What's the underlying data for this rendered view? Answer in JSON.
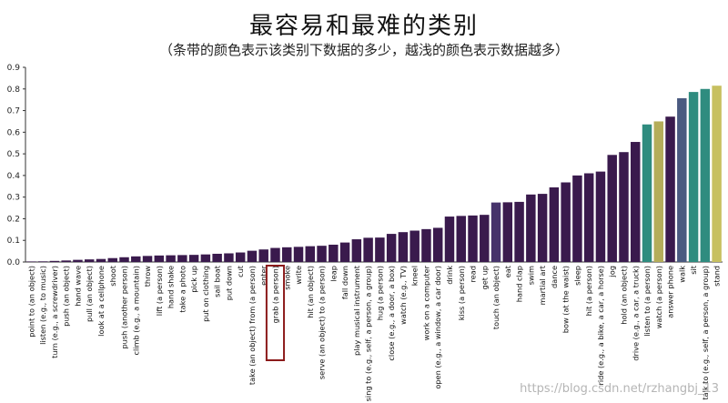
{
  "title": "最容易和最难的类别",
  "subtitle": "（条带的颜色表示该类别下数据的多少，越浅的颜色表示数据越多）",
  "watermark": "https://blog.csdn.net/rzhangbj_13",
  "highlight_category": "grab (a person)",
  "colors": {
    "dark": "#3a1a4d",
    "purple_blue": "#46336b",
    "teal": "#2f8c7f",
    "olive": "#b4ad5a",
    "slate": "#4a5a80",
    "highlight": "#8b1a1a",
    "axis": "#333333"
  },
  "chart_data": {
    "type": "bar",
    "title": "最容易和最难的类别",
    "subtitle": "（条带的颜色表示该类别下数据的多少，越浅的颜色表示数据越多）",
    "xlabel": "",
    "ylabel": "",
    "ylim": [
      0,
      0.9
    ],
    "yticks": [
      "0.0",
      "0.1",
      "0.2",
      "0.3",
      "0.4",
      "0.5",
      "0.6",
      "0.7",
      "0.8",
      "0.9"
    ],
    "grid": false,
    "categories": [
      "point to (an object)",
      "listen (e.g., to music)",
      "turn (e.g., a screwdriver)",
      "push (an object)",
      "hand wave",
      "pull (an object)",
      "look at a cellphone",
      "shoot",
      "push (another person)",
      "climb (e.g., a mountain)",
      "throw",
      "lift (a person)",
      "hand shake",
      "take a photo",
      "pick up",
      "put on clothing",
      "sail boat",
      "put down",
      "cut",
      "take (an object) from (a person)",
      "enter",
      "grab (a person)",
      "smoke",
      "write",
      "hit (an object)",
      "serve (an object) to (a person)",
      "leap",
      "fall down",
      "play musical instrument",
      "sing to (e.g., self, a person, a group)",
      "hug (a person)",
      "close (e.g., a door, a box)",
      "watch (e.g., TV)",
      "kneel",
      "work on a computer",
      "open (e.g., a window, a car door)",
      "drink",
      "kiss (a person)",
      "read",
      "get up",
      "touch (an object)",
      "eat",
      "hand clap",
      "swim",
      "martial art",
      "dance",
      "bow (at the waist)",
      "sleep",
      "hit (a person)",
      "ride (e.g., a bike, a car, a horse)",
      "jog",
      "hold (an object)",
      "drive (e.g., a car, a truck)",
      "listen to (a person)",
      "watch (a person)",
      "answer phone",
      "walk",
      "sit",
      "talk to (e.g., self, a person, a group)",
      "stand"
    ],
    "values": [
      0.002,
      0.003,
      0.005,
      0.007,
      0.01,
      0.012,
      0.014,
      0.018,
      0.022,
      0.026,
      0.028,
      0.03,
      0.031,
      0.032,
      0.033,
      0.035,
      0.038,
      0.04,
      0.044,
      0.052,
      0.058,
      0.065,
      0.068,
      0.07,
      0.073,
      0.075,
      0.08,
      0.09,
      0.105,
      0.112,
      0.113,
      0.13,
      0.138,
      0.145,
      0.152,
      0.158,
      0.21,
      0.213,
      0.215,
      0.218,
      0.275,
      0.276,
      0.278,
      0.312,
      0.315,
      0.345,
      0.368,
      0.4,
      0.41,
      0.418,
      0.495,
      0.508,
      0.555,
      0.636,
      0.65,
      0.672,
      0.757,
      0.786,
      0.8,
      0.815
    ],
    "bar_colors": [
      "#3a1a4d",
      "#3a1a4d",
      "#3a1a4d",
      "#3a1a4d",
      "#3a1a4d",
      "#3a1a4d",
      "#3a1a4d",
      "#3a1a4d",
      "#3a1a4d",
      "#3a1a4d",
      "#3a1a4d",
      "#3a1a4d",
      "#3a1a4d",
      "#3a1a4d",
      "#3a1a4d",
      "#3a1a4d",
      "#3a1a4d",
      "#3a1a4d",
      "#3a1a4d",
      "#3a1a4d",
      "#3a1a4d",
      "#3a1a4d",
      "#3a1a4d",
      "#3a1a4d",
      "#3a1a4d",
      "#3a1a4d",
      "#3a1a4d",
      "#3a1a4d",
      "#3a1a4d",
      "#3a1a4d",
      "#3a1a4d",
      "#3a1a4d",
      "#3a1a4d",
      "#3a1a4d",
      "#3a1a4d",
      "#3a1a4d",
      "#3a1a4d",
      "#3a1a4d",
      "#3a1a4d",
      "#3a1a4d",
      "#46336b",
      "#3a1a4d",
      "#3a1a4d",
      "#3a1a4d",
      "#3a1a4d",
      "#3a1a4d",
      "#3a1a4d",
      "#3a1a4d",
      "#3a1a4d",
      "#3a1a4d",
      "#3a1a4d",
      "#3a1a4d",
      "#3a1a4d",
      "#2f8c7f",
      "#b4ad5a",
      "#3a1a4d",
      "#4a5a80",
      "#2f8c7f",
      "#2f8c7f",
      "#c7c060"
    ]
  }
}
